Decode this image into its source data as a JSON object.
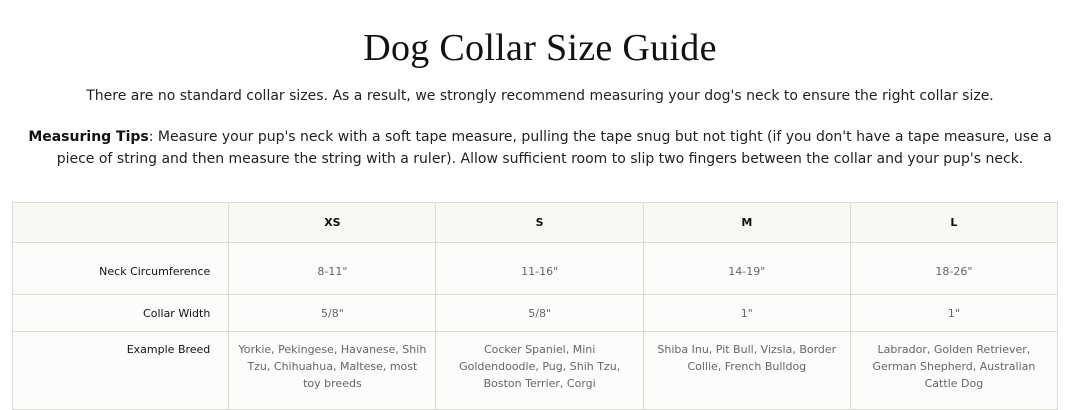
{
  "title": "Dog Collar Size Guide",
  "intro": "There are no standard collar sizes. As a result, we strongly recommend measuring your dog's neck to ensure the right collar size.",
  "tips": {
    "label": "Measuring Tips",
    "text": ": Measure your pup's neck with a soft tape measure, pulling the tape snug but not tight (if you don't have a tape measure, use a piece of string and then measure the string with a ruler). Allow sufficient room to slip two fingers between the collar and your pup's neck."
  },
  "table": {
    "headers": [
      "",
      "XS",
      "S",
      "M",
      "L"
    ],
    "rows": [
      {
        "label": "Neck Circumference",
        "values": [
          "8-11\"",
          "11-16\"",
          "14-19\"",
          "18-26\""
        ]
      },
      {
        "label": "Collar Width",
        "values": [
          "5/8\"",
          "5/8\"",
          "1\"",
          "1\""
        ]
      },
      {
        "label": "Example Breed",
        "values": [
          "Yorkie, Pekingese, Havanese, Shih Tzu, Chihuahua, Maltese, most toy breeds",
          "Cocker Spaniel, Mini Goldendoodle, Pug, Shih Tzu, Boston Terrier, Corgi",
          "Shiba Inu, Pit Bull, Vizsla, Border Collie, French Bulldog",
          "Labrador, Golden Retriever, German Shepherd, Australian Cattle Dog"
        ]
      }
    ]
  }
}
